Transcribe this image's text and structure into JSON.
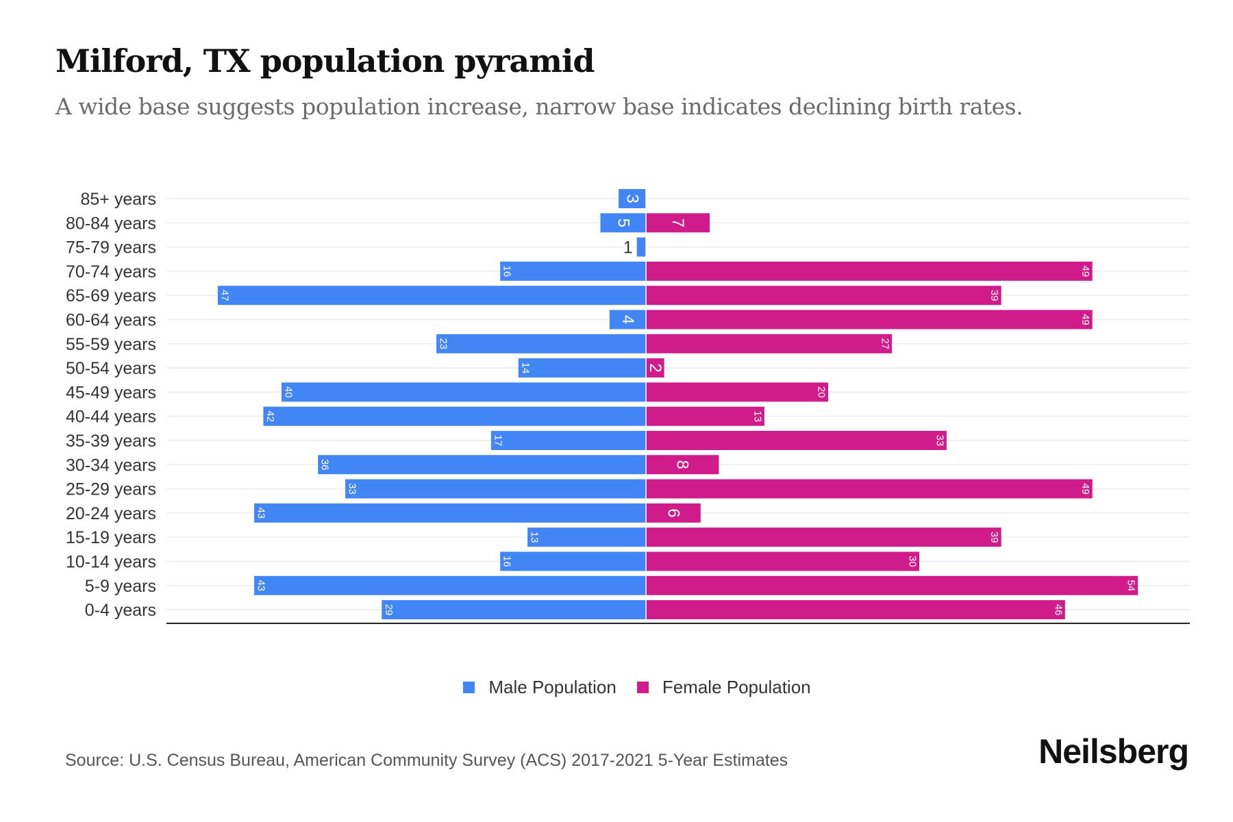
{
  "chart_data": {
    "type": "bar",
    "orientation": "horizontal-pyramid",
    "title": "Milford, TX population pyramid",
    "subtitle": "A wide base suggests population increase, narrow base indicates declining birth rates.",
    "categories": [
      "85+ years",
      "80-84 years",
      "75-79 years",
      "70-74 years",
      "65-69 years",
      "60-64 years",
      "55-59 years",
      "50-54 years",
      "45-49 years",
      "40-44 years",
      "35-39 years",
      "30-34 years",
      "25-29 years",
      "20-24 years",
      "15-19 years",
      "10-14 years",
      "5-9 years",
      "0-4 years"
    ],
    "series": [
      {
        "name": "Male Population",
        "color": "#4285f4",
        "values": [
          3,
          5,
          1,
          16,
          47,
          4,
          23,
          14,
          40,
          42,
          17,
          36,
          33,
          43,
          13,
          16,
          43,
          29
        ]
      },
      {
        "name": "Female Population",
        "color": "#d01c8b",
        "values": [
          0,
          7,
          0,
          49,
          39,
          49,
          27,
          2,
          20,
          13,
          33,
          8,
          49,
          6,
          39,
          30,
          54,
          46
        ]
      }
    ],
    "legend_position": "bottom-center",
    "grid": true
  },
  "source": "Source: U.S. Census Bureau, American Community Survey (ACS) 2017-2021 5-Year Estimates",
  "brand": "Neilsberg"
}
